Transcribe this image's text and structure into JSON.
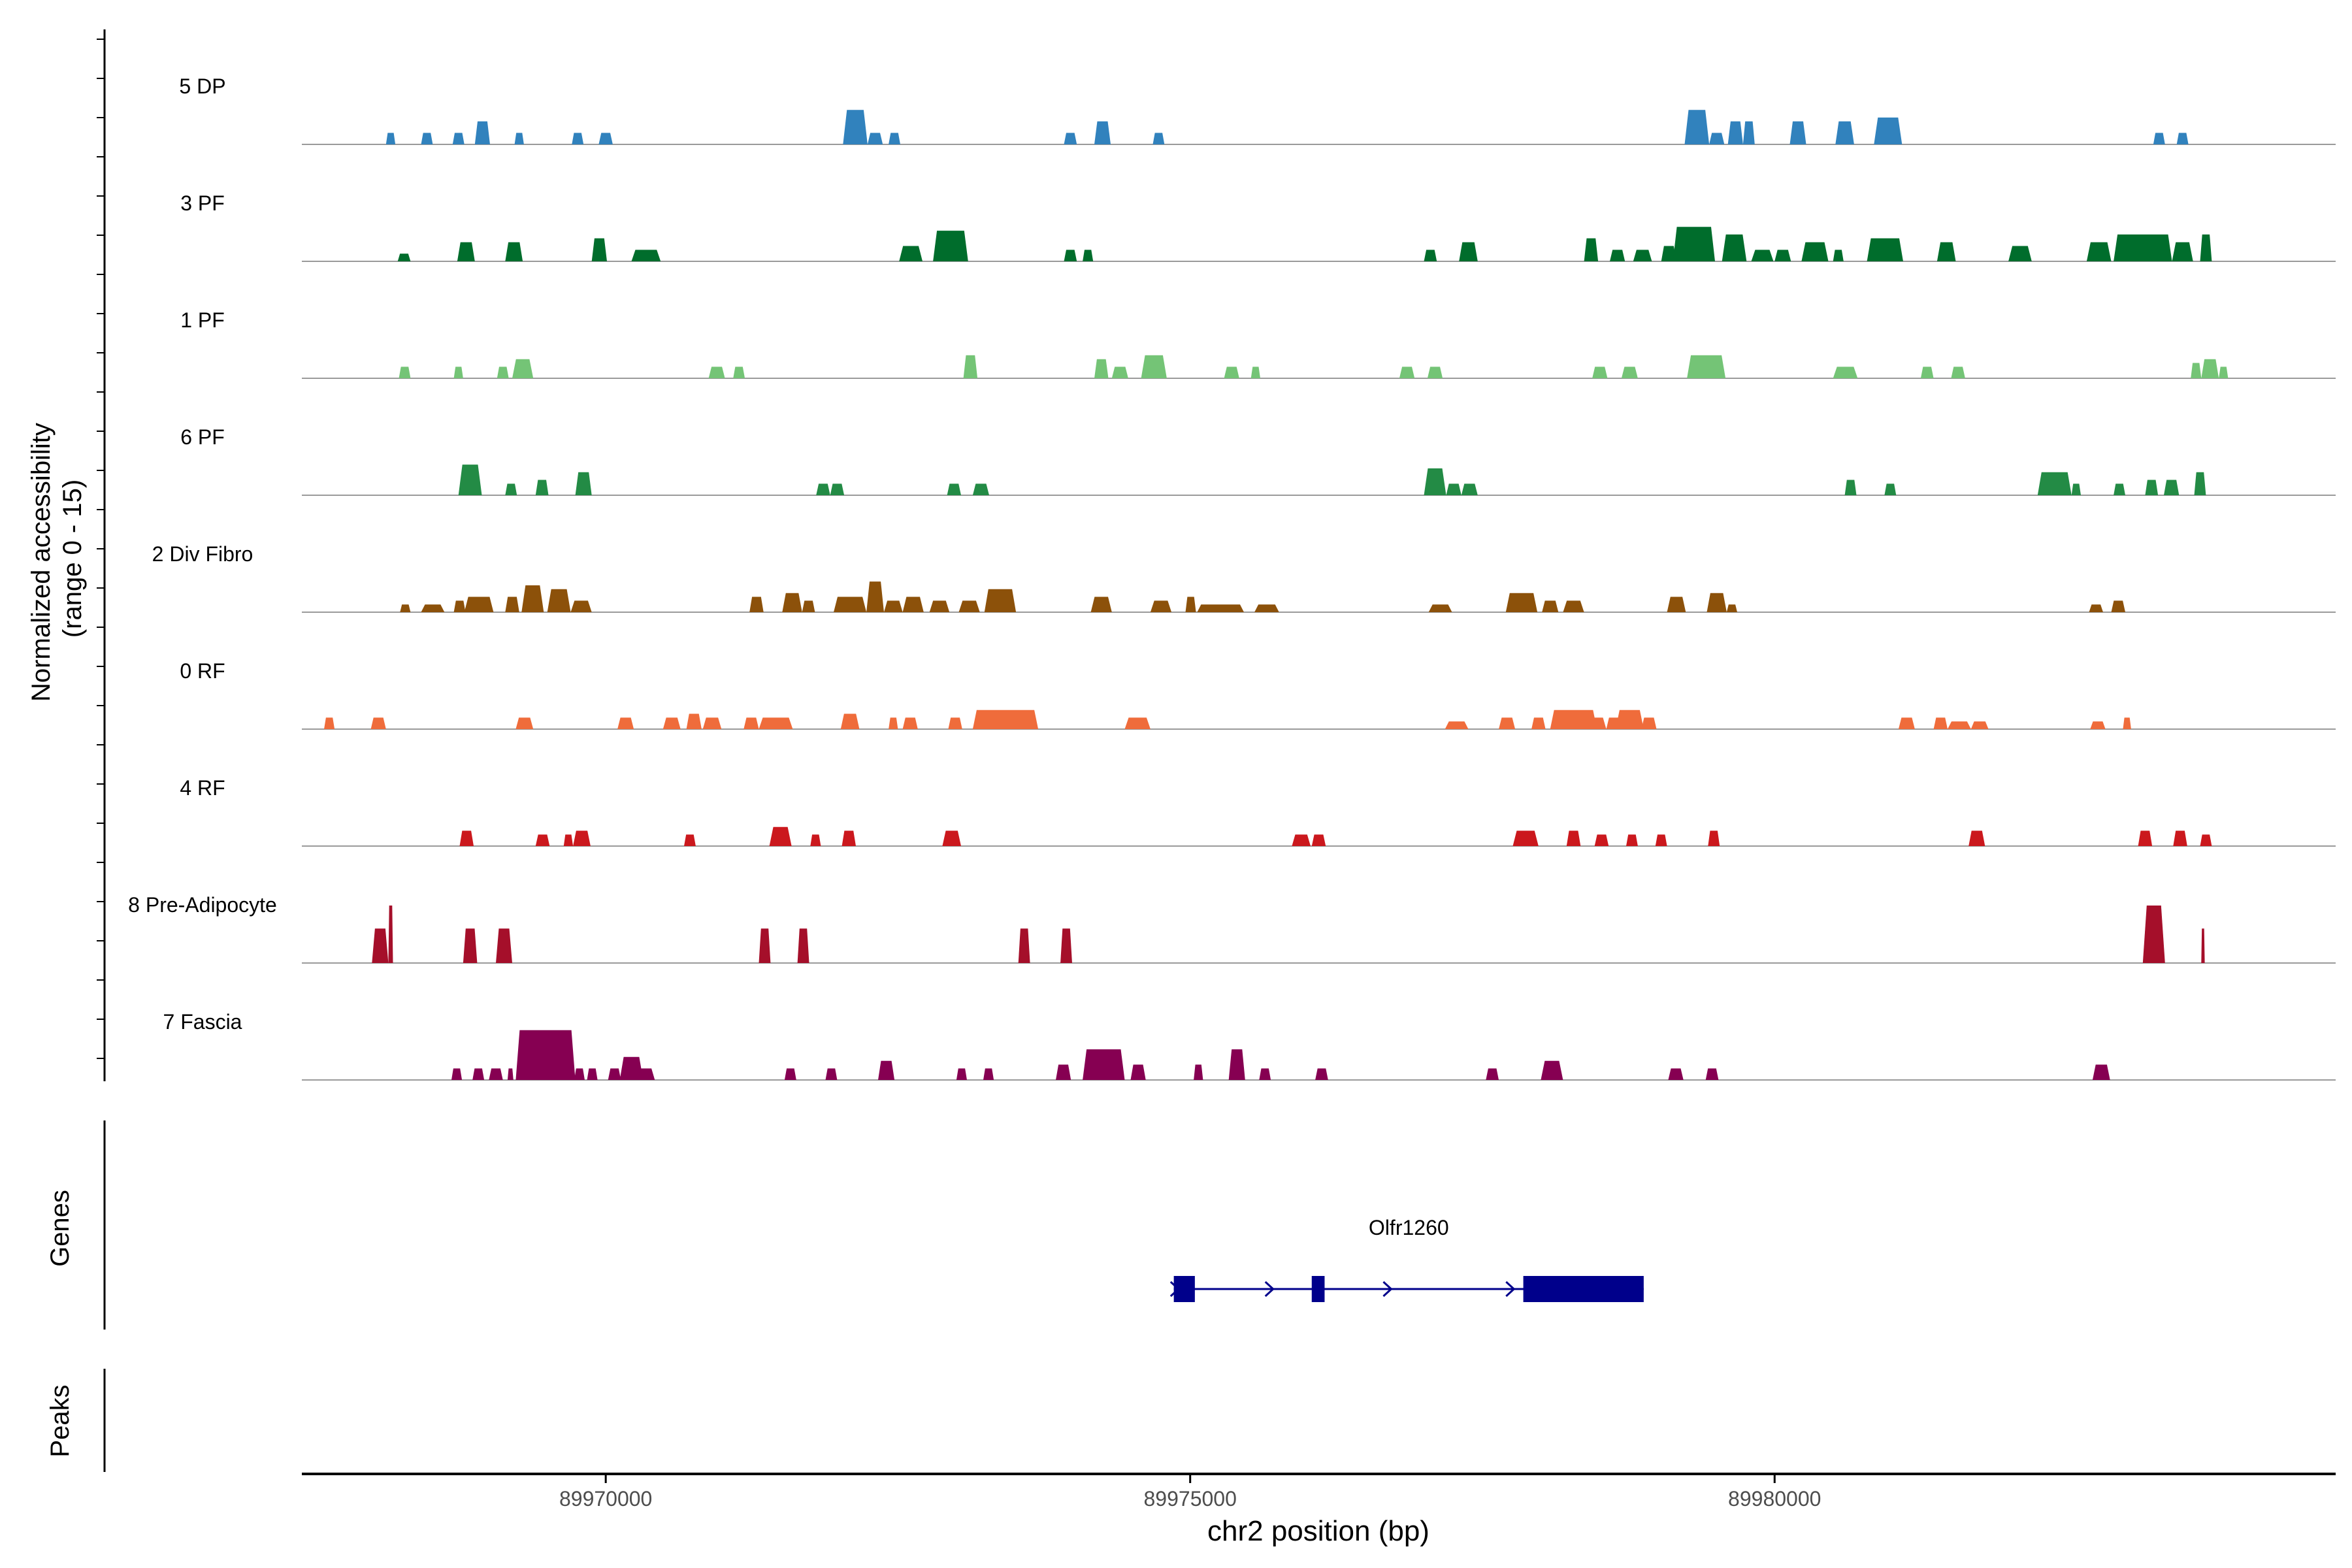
{
  "chart_data": {
    "type": "coverage",
    "ylabel_line1": "Normalized accessibility",
    "ylabel_line2": "(range 0 - 15)",
    "xlabel": "chr2 position (bp)",
    "xlim": [
      89967400,
      89984800
    ],
    "ylim": [
      0,
      15
    ],
    "x_ticks": [
      "89970000",
      "89975000",
      "89980000"
    ],
    "x_tick_values": [
      89970000,
      89975000,
      89980000
    ],
    "genes_label": "Genes",
    "peaks_label": "Peaks",
    "tracks": [
      {
        "name": "5 DP",
        "color": "#3182bd",
        "peaks": [
          [
            89968120,
            89968200,
            3
          ],
          [
            89968420,
            89968520,
            3
          ],
          [
            89968690,
            89968790,
            3
          ],
          [
            89968880,
            89969010,
            6
          ],
          [
            89969220,
            89969300,
            3
          ],
          [
            89969710,
            89969810,
            3
          ],
          [
            89969940,
            89970060,
            3
          ],
          [
            89972030,
            89972240,
            9
          ],
          [
            89972240,
            89972370,
            3
          ],
          [
            89972420,
            89972520,
            3
          ],
          [
            89973920,
            89974030,
            3
          ],
          [
            89974180,
            89974320,
            6
          ],
          [
            89974680,
            89974780,
            3
          ],
          [
            89979230,
            89979440,
            9
          ],
          [
            89979440,
            89979570,
            3
          ],
          [
            89979600,
            89979730,
            6
          ],
          [
            89979730,
            89979830,
            6
          ],
          [
            89980130,
            89980270,
            6
          ],
          [
            89980520,
            89980680,
            6
          ],
          [
            89980850,
            89981090,
            7
          ],
          [
            89983240,
            89983340,
            3
          ],
          [
            89983440,
            89983540,
            3
          ]
        ]
      },
      {
        "name": "3 PF",
        "color": "#006d2c",
        "peaks": [
          [
            89968220,
            89968330,
            2
          ],
          [
            89968730,
            89968880,
            5
          ],
          [
            89969140,
            89969290,
            5
          ],
          [
            89969880,
            89970010,
            6
          ],
          [
            89970220,
            89970470,
            3
          ],
          [
            89972510,
            89972710,
            4
          ],
          [
            89972800,
            89973100,
            8
          ],
          [
            89973920,
            89974030,
            3
          ],
          [
            89974080,
            89974170,
            3
          ],
          [
            89977000,
            89977110,
            3
          ],
          [
            89977300,
            89977460,
            5
          ],
          [
            89978370,
            89978490,
            6
          ],
          [
            89978590,
            89978720,
            3
          ],
          [
            89978790,
            89978950,
            3
          ],
          [
            89979030,
            89979160,
            4
          ],
          [
            89979130,
            89979490,
            9
          ],
          [
            89979550,
            89979760,
            7
          ],
          [
            89979800,
            89979990,
            3
          ],
          [
            89980000,
            89980140,
            3
          ],
          [
            89980230,
            89980460,
            5
          ],
          [
            89980500,
            89980590,
            3
          ],
          [
            89980790,
            89981100,
            6
          ],
          [
            89981390,
            89981550,
            5
          ],
          [
            89982000,
            89982200,
            4
          ],
          [
            89982670,
            89982880,
            5
          ],
          [
            89982900,
            89983400,
            7
          ],
          [
            89983400,
            89983580,
            5
          ],
          [
            89983640,
            89983740,
            7
          ]
        ]
      },
      {
        "name": "1 PF",
        "color": "#74c476",
        "peaks": [
          [
            89968230,
            89968330,
            3
          ],
          [
            89968700,
            89968780,
            3
          ],
          [
            89969070,
            89969170,
            3
          ],
          [
            89969200,
            89969380,
            5
          ],
          [
            89970880,
            89971020,
            3
          ],
          [
            89971090,
            89971190,
            3
          ],
          [
            89973060,
            89973180,
            6
          ],
          [
            89974180,
            89974300,
            5
          ],
          [
            89974330,
            89974470,
            3
          ],
          [
            89974580,
            89974800,
            6
          ],
          [
            89975290,
            89975420,
            3
          ],
          [
            89975520,
            89975600,
            3
          ],
          [
            89976790,
            89976920,
            3
          ],
          [
            89977030,
            89977160,
            3
          ],
          [
            89978440,
            89978570,
            3
          ],
          [
            89978690,
            89978830,
            3
          ],
          [
            89979250,
            89979580,
            6
          ],
          [
            89980500,
            89980710,
            3
          ],
          [
            89981250,
            89981360,
            3
          ],
          [
            89981510,
            89981630,
            3
          ],
          [
            89983560,
            89983650,
            4
          ],
          [
            89983650,
            89983800,
            5
          ],
          [
            89983800,
            89983880,
            3
          ]
        ]
      },
      {
        "name": "6 PF",
        "color": "#238b45",
        "peaks": [
          [
            89968740,
            89968940,
            8
          ],
          [
            89969140,
            89969240,
            3
          ],
          [
            89969400,
            89969510,
            4
          ],
          [
            89969740,
            89969880,
            6
          ],
          [
            89971800,
            89971920,
            3
          ],
          [
            89971920,
            89972040,
            3
          ],
          [
            89972920,
            89973040,
            3
          ],
          [
            89973140,
            89973280,
            3
          ],
          [
            89977000,
            89977190,
            7
          ],
          [
            89977190,
            89977320,
            3
          ],
          [
            89977320,
            89977460,
            3
          ],
          [
            89980600,
            89980700,
            4
          ],
          [
            89980940,
            89981040,
            3
          ],
          [
            89982250,
            89982540,
            6
          ],
          [
            89982540,
            89982620,
            3
          ],
          [
            89982900,
            89983000,
            3
          ],
          [
            89983170,
            89983280,
            4
          ],
          [
            89983330,
            89983460,
            4
          ],
          [
            89983590,
            89983690,
            6
          ]
        ]
      },
      {
        "name": "2 Div Fibro",
        "color": "#8c510a",
        "peaks": [
          [
            89968240,
            89968330,
            2
          ],
          [
            89968420,
            89968620,
            2
          ],
          [
            89968700,
            89968800,
            3
          ],
          [
            89968790,
            89969040,
            4
          ],
          [
            89969140,
            89969260,
            4
          ],
          [
            89969280,
            89969470,
            7
          ],
          [
            89969500,
            89969700,
            6
          ],
          [
            89969700,
            89969880,
            3
          ],
          [
            89971230,
            89971350,
            4
          ],
          [
            89971510,
            89971680,
            5
          ],
          [
            89971680,
            89971790,
            3
          ],
          [
            89971950,
            89972230,
            4
          ],
          [
            89972230,
            89972380,
            8
          ],
          [
            89972380,
            89972540,
            3
          ],
          [
            89972540,
            89972720,
            4
          ],
          [
            89972770,
            89972940,
            3
          ],
          [
            89973020,
            89973200,
            3
          ],
          [
            89973240,
            89973510,
            6
          ],
          [
            89974150,
            89974330,
            4
          ],
          [
            89974660,
            89974840,
            3
          ],
          [
            89974960,
            89975050,
            4
          ],
          [
            89975060,
            89975460,
            2
          ],
          [
            89975550,
            89975760,
            2
          ],
          [
            89977040,
            89977240,
            2
          ],
          [
            89977700,
            89977970,
            5
          ],
          [
            89978010,
            89978150,
            3
          ],
          [
            89978190,
            89978370,
            3
          ],
          [
            89979080,
            89979240,
            4
          ],
          [
            89979420,
            89979590,
            5
          ],
          [
            89979590,
            89979680,
            2
          ],
          [
            89982690,
            89982810,
            2
          ],
          [
            89982880,
            89983000,
            3
          ]
        ]
      },
      {
        "name": "0 RF",
        "color": "#ef6c3b",
        "peaks": [
          [
            89967590,
            89967680,
            3
          ],
          [
            89967990,
            89968120,
            3
          ],
          [
            89969230,
            89969380,
            3
          ],
          [
            89970100,
            89970240,
            3
          ],
          [
            89970490,
            89970640,
            3
          ],
          [
            89970690,
            89970820,
            4
          ],
          [
            89970830,
            89970990,
            3
          ],
          [
            89971180,
            89971310,
            3
          ],
          [
            89971310,
            89971600,
            3
          ],
          [
            89972010,
            89972170,
            4
          ],
          [
            89972420,
            89972500,
            3
          ],
          [
            89972540,
            89972670,
            3
          ],
          [
            89972930,
            89973050,
            3
          ],
          [
            89973140,
            89973450,
            3
          ],
          [
            89973140,
            89973700,
            5
          ],
          [
            89974440,
            89974660,
            3
          ],
          [
            89977180,
            89977380,
            2
          ],
          [
            89977640,
            89977780,
            3
          ],
          [
            89977920,
            89978040,
            3
          ],
          [
            89978080,
            89978480,
            5
          ],
          [
            89978400,
            89978560,
            3
          ],
          [
            89978560,
            89978690,
            3
          ],
          [
            89978640,
            89978880,
            5
          ],
          [
            89978860,
            89978990,
            3
          ],
          [
            89981060,
            89981200,
            3
          ],
          [
            89981360,
            89981480,
            3
          ],
          [
            89981480,
            89981680,
            2
          ],
          [
            89981680,
            89981830,
            2
          ],
          [
            89982700,
            89982830,
            2
          ],
          [
            89982980,
            89983050,
            3
          ]
        ]
      },
      {
        "name": "4 RF",
        "color": "#cb181d",
        "peaks": [
          [
            89968750,
            89968870,
            4
          ],
          [
            89969400,
            89969520,
            3
          ],
          [
            89969640,
            89969720,
            3
          ],
          [
            89969720,
            89969870,
            4
          ],
          [
            89970670,
            89970770,
            3
          ],
          [
            89971400,
            89971590,
            5
          ],
          [
            89971750,
            89971840,
            3
          ],
          [
            89972020,
            89972140,
            4
          ],
          [
            89972880,
            89973040,
            4
          ],
          [
            89975870,
            89976030,
            3
          ],
          [
            89976040,
            89976160,
            3
          ],
          [
            89977760,
            89977980,
            4
          ],
          [
            89978220,
            89978340,
            4
          ],
          [
            89978460,
            89978580,
            3
          ],
          [
            89978730,
            89978830,
            3
          ],
          [
            89978980,
            89979080,
            3
          ],
          [
            89979430,
            89979530,
            4
          ],
          [
            89981660,
            89981800,
            4
          ],
          [
            89983110,
            89983230,
            4
          ],
          [
            89983410,
            89983530,
            4
          ],
          [
            89983640,
            89983740,
            3
          ]
        ]
      },
      {
        "name": "8 Pre-Adipocyte",
        "color": "#a50f2a",
        "peaks": [
          [
            89968000,
            89968140,
            9
          ],
          [
            89968150,
            89968160,
            9
          ],
          [
            89968140,
            89968180,
            15
          ],
          [
            89968780,
            89968900,
            9
          ],
          [
            89969060,
            89969200,
            9
          ],
          [
            89971310,
            89971410,
            9
          ],
          [
            89971640,
            89971740,
            9
          ],
          [
            89973530,
            89973630,
            9
          ],
          [
            89973890,
            89973990,
            9
          ],
          [
            89983150,
            89983340,
            15
          ],
          [
            89983650,
            89983680,
            9
          ]
        ]
      },
      {
        "name": "7 Fascia",
        "color": "#860052",
        "peaks": [
          [
            89968680,
            89968770,
            3
          ],
          [
            89968860,
            89968960,
            3
          ],
          [
            89969000,
            89969120,
            3
          ],
          [
            89969160,
            89969210,
            3
          ],
          [
            89969230,
            89969740,
            13
          ],
          [
            89969730,
            89969820,
            3
          ],
          [
            89969840,
            89969930,
            3
          ],
          [
            89970020,
            89970130,
            3
          ],
          [
            89970120,
            89970320,
            6
          ],
          [
            89970260,
            89970420,
            3
          ],
          [
            89971530,
            89971630,
            3
          ],
          [
            89971880,
            89971980,
            3
          ],
          [
            89972330,
            89972470,
            5
          ],
          [
            89973000,
            89973090,
            3
          ],
          [
            89973230,
            89973320,
            3
          ],
          [
            89973850,
            89973980,
            4
          ],
          [
            89974080,
            89974440,
            8
          ],
          [
            89974490,
            89974620,
            4
          ],
          [
            89975030,
            89975110,
            4
          ],
          [
            89975330,
            89975470,
            8
          ],
          [
            89975590,
            89975690,
            3
          ],
          [
            89976070,
            89976180,
            3
          ],
          [
            89977530,
            89977640,
            3
          ],
          [
            89978000,
            89978190,
            5
          ],
          [
            89979090,
            89979220,
            3
          ],
          [
            89979410,
            89979520,
            3
          ],
          [
            89982720,
            89982870,
            4
          ]
        ]
      }
    ],
    "gene": {
      "name": "Olfr1260",
      "start": 89974860,
      "end": 89978880,
      "strand": "+",
      "exons": [
        [
          89974860,
          89975040
        ],
        [
          89976040,
          89976150
        ],
        [
          89977850,
          89978880
        ]
      ],
      "arrows": [
        89974900,
        89975710,
        89976720,
        89977770
      ]
    }
  }
}
